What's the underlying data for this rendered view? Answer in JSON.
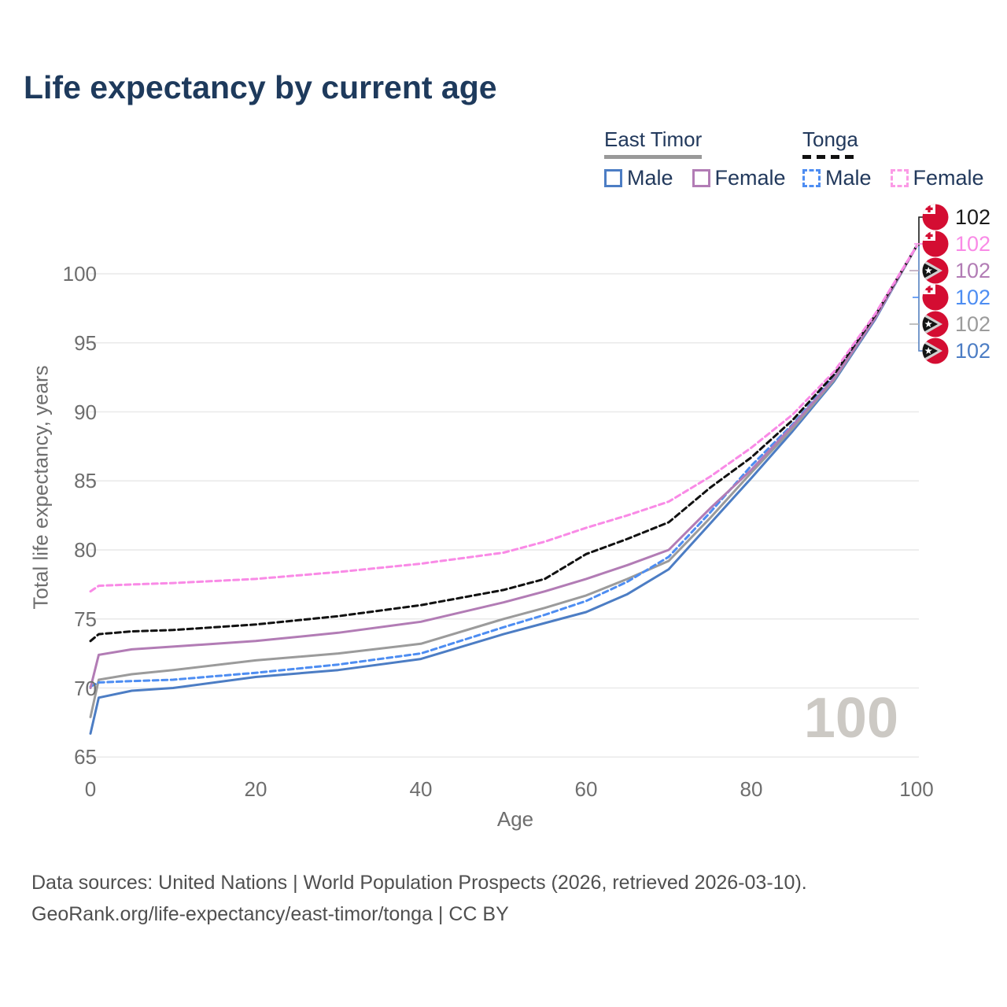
{
  "title": "Life expectancy by current age",
  "legend": {
    "groups": [
      {
        "label": "East Timor",
        "underline_style": "solid",
        "underline_color": "#999999",
        "items": [
          {
            "label": "Male",
            "color": "#4c7dc4",
            "dashed": false
          },
          {
            "label": "Female",
            "color": "#b27cb5",
            "dashed": false
          }
        ]
      },
      {
        "label": "Tonga",
        "underline_style": "dashed",
        "underline_color": "#111111",
        "items": [
          {
            "label": "Male",
            "color": "#4d8df2",
            "dashed": true
          },
          {
            "label": "Female",
            "color": "#fb9be6",
            "dashed": true
          }
        ]
      }
    ]
  },
  "watermark": "100",
  "footer": {
    "line1": "Data sources: United Nations | World Population Prospects (2026, retrieved 2026-03-10).",
    "line2": "GeoRank.org/life-expectancy/east-timor/tonga | CC BY"
  },
  "chart_data": {
    "type": "line",
    "title": "Life expectancy by current age",
    "xlabel": "Age",
    "ylabel": "Total life expectancy, years",
    "x_ticks": [
      0,
      20,
      40,
      60,
      80,
      100
    ],
    "y_ticks": [
      65,
      70,
      75,
      80,
      85,
      90,
      95,
      100
    ],
    "xlim": [
      0,
      100
    ],
    "ylim": [
      63.5,
      103
    ],
    "grid": "horizontal-only",
    "legend_position": "top-right",
    "x": [
      0,
      1,
      5,
      10,
      20,
      30,
      40,
      50,
      55,
      60,
      65,
      70,
      75,
      80,
      85,
      90,
      95,
      100
    ],
    "series": [
      {
        "name": "East Timor Male",
        "country": "east-timor",
        "sex": "male",
        "color": "#4c7dc4",
        "dashed": false,
        "end_value": 102,
        "values": [
          66.7,
          69.3,
          69.8,
          70.0,
          70.8,
          71.3,
          72.1,
          73.9,
          74.7,
          75.5,
          76.8,
          78.6,
          81.9,
          85.2,
          88.6,
          92.2,
          96.7,
          102
        ]
      },
      {
        "name": "East Timor Both sexes",
        "country": "east-timor",
        "sex": "both",
        "color": "#9b9b9b",
        "dashed": false,
        "end_value": 102,
        "values": [
          67.9,
          70.6,
          71.0,
          71.3,
          72.0,
          72.5,
          73.2,
          75.0,
          75.8,
          76.7,
          77.9,
          79.2,
          82.3,
          85.6,
          88.8,
          92.3,
          96.8,
          102
        ]
      },
      {
        "name": "Tonga Male",
        "country": "tonga",
        "sex": "male",
        "color": "#4d8df2",
        "dashed": true,
        "end_value": 102,
        "values": [
          70.1,
          70.4,
          70.5,
          70.6,
          71.1,
          71.7,
          72.5,
          74.4,
          75.3,
          76.3,
          77.7,
          79.5,
          82.7,
          86.1,
          89.1,
          92.5,
          96.9,
          102
        ]
      },
      {
        "name": "East Timor Female",
        "country": "east-timor",
        "sex": "female",
        "color": "#b27cb5",
        "dashed": false,
        "end_value": 102,
        "values": [
          70.0,
          72.4,
          72.8,
          73.0,
          73.4,
          74.0,
          74.8,
          76.2,
          77.0,
          77.9,
          78.9,
          80.0,
          83.0,
          85.8,
          89.0,
          92.4,
          96.8,
          102
        ]
      },
      {
        "name": "Tonga Both sexes",
        "country": "tonga",
        "sex": "both",
        "color": "#111111",
        "dashed": true,
        "end_value": 102,
        "values": [
          73.4,
          73.9,
          74.1,
          74.2,
          74.6,
          75.2,
          76.0,
          77.1,
          77.9,
          79.7,
          80.8,
          82.0,
          84.5,
          86.7,
          89.4,
          92.7,
          97.0,
          102
        ]
      },
      {
        "name": "Tonga Female",
        "country": "tonga",
        "sex": "female",
        "color": "#f98ae6",
        "dashed": true,
        "end_value": 102,
        "values": [
          77.0,
          77.4,
          77.5,
          77.6,
          77.9,
          78.4,
          79.0,
          79.8,
          80.6,
          81.6,
          82.5,
          83.5,
          85.3,
          87.4,
          89.8,
          92.9,
          97.1,
          102
        ]
      }
    ],
    "end_labels": [
      {
        "flag": "tonga",
        "series": "Tonga Both sexes",
        "value": "102",
        "color": "#1a1a1a"
      },
      {
        "flag": "tonga",
        "series": "Tonga Female",
        "value": "102",
        "color": "#f98ae6"
      },
      {
        "flag": "east-timor",
        "series": "East Timor Female",
        "value": "102",
        "color": "#b27cb5"
      },
      {
        "flag": "tonga",
        "series": "Tonga Male",
        "value": "102",
        "color": "#4d8df2"
      },
      {
        "flag": "east-timor",
        "series": "East Timor Both sexes",
        "value": "102",
        "color": "#9b9b9b"
      },
      {
        "flag": "east-timor",
        "series": "East Timor Male",
        "value": "102",
        "color": "#4c7dc4"
      }
    ]
  }
}
